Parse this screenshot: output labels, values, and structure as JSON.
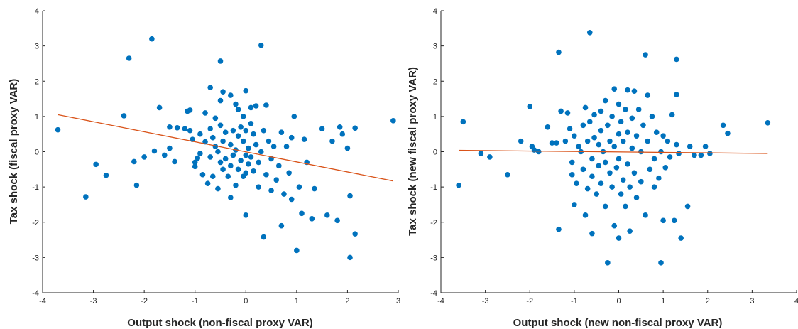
{
  "chart_data": [
    {
      "type": "scatter",
      "xlabel": "Output shock (non-fiscal proxy VAR)",
      "ylabel": "Tax shock (fiscal proxy VAR)",
      "xlim": [
        -4,
        3
      ],
      "ylim": [
        -4,
        4
      ],
      "xticks": [
        -4,
        -3,
        -2,
        -1,
        0,
        1,
        2,
        3
      ],
      "yticks": [
        -4,
        -3,
        -2,
        -1,
        0,
        1,
        2,
        3,
        4
      ],
      "grid": false,
      "colors": {
        "points": "#0072BD",
        "fit": "#D95319"
      },
      "fit_line": {
        "x": [
          -3.7,
          2.9
        ],
        "y": [
          1.05,
          -0.83
        ]
      },
      "series": [
        {
          "points": [
            [
              -3.7,
              0.62
            ],
            [
              -3.15,
              -1.28
            ],
            [
              -2.95,
              -0.36
            ],
            [
              -2.75,
              -0.67
            ],
            [
              -2.4,
              1.02
            ],
            [
              -2.3,
              2.65
            ],
            [
              -2.2,
              -0.28
            ],
            [
              -2.15,
              -0.95
            ],
            [
              -2.0,
              -0.15
            ],
            [
              -1.85,
              3.2
            ],
            [
              -1.8,
              0.02
            ],
            [
              -1.7,
              1.25
            ],
            [
              -1.6,
              -0.1
            ],
            [
              -1.5,
              0.1
            ],
            [
              -1.5,
              0.7
            ],
            [
              -1.4,
              -0.28
            ],
            [
              -1.35,
              0.68
            ],
            [
              -1.2,
              0.65
            ],
            [
              -1.15,
              1.15
            ],
            [
              -1.1,
              1.18
            ],
            [
              -1.1,
              0.6
            ],
            [
              -1.05,
              0.35
            ],
            [
              -1.0,
              -0.3
            ],
            [
              -1.0,
              -0.42
            ],
            [
              -0.95,
              -0.18
            ],
            [
              -0.9,
              0.5
            ],
            [
              -0.9,
              -0.05
            ],
            [
              -0.85,
              -0.65
            ],
            [
              -0.8,
              1.1
            ],
            [
              -0.8,
              0.28
            ],
            [
              -0.75,
              -0.9
            ],
            [
              -0.7,
              1.82
            ],
            [
              -0.7,
              0.65
            ],
            [
              -0.7,
              -0.15
            ],
            [
              -0.65,
              0.4
            ],
            [
              -0.65,
              -0.7
            ],
            [
              -0.6,
              0.95
            ],
            [
              -0.6,
              0.15
            ],
            [
              -0.55,
              -1.05
            ],
            [
              -0.55,
              0.0
            ],
            [
              -0.5,
              2.57
            ],
            [
              -0.5,
              1.45
            ],
            [
              -0.5,
              0.75
            ],
            [
              -0.5,
              -0.3
            ],
            [
              -0.45,
              1.7
            ],
            [
              -0.45,
              -0.5
            ],
            [
              -0.45,
              0.3
            ],
            [
              -0.4,
              0.55
            ],
            [
              -0.4,
              -0.2
            ],
            [
              -0.35,
              -0.7
            ],
            [
              -0.3,
              1.6
            ],
            [
              -0.3,
              0.2
            ],
            [
              -0.3,
              -0.4
            ],
            [
              -0.3,
              -1.3
            ],
            [
              -0.25,
              0.6
            ],
            [
              -0.25,
              -0.1
            ],
            [
              -0.2,
              1.35
            ],
            [
              -0.2,
              0.05
            ],
            [
              -0.2,
              -0.95
            ],
            [
              -0.15,
              1.2
            ],
            [
              -0.15,
              0.45
            ],
            [
              -0.15,
              -0.5
            ],
            [
              -0.1,
              0.7
            ],
            [
              -0.1,
              -0.25
            ],
            [
              -0.05,
              1.0
            ],
            [
              -0.05,
              0.3
            ],
            [
              -0.05,
              -0.7
            ],
            [
              0.0,
              1.73
            ],
            [
              0.0,
              0.6
            ],
            [
              0.0,
              -0.1
            ],
            [
              0.0,
              -0.6
            ],
            [
              0.0,
              -1.8
            ],
            [
              0.05,
              0.1
            ],
            [
              0.05,
              -0.35
            ],
            [
              0.1,
              0.8
            ],
            [
              0.1,
              1.25
            ],
            [
              0.1,
              -0.15
            ],
            [
              0.15,
              0.5
            ],
            [
              0.15,
              -0.55
            ],
            [
              0.2,
              1.3
            ],
            [
              0.2,
              0.2
            ],
            [
              0.25,
              -0.3
            ],
            [
              0.25,
              -1.0
            ],
            [
              0.3,
              3.02
            ],
            [
              0.3,
              0.0
            ],
            [
              0.35,
              0.6
            ],
            [
              0.35,
              -2.42
            ],
            [
              0.4,
              1.32
            ],
            [
              0.4,
              -0.65
            ],
            [
              0.45,
              0.3
            ],
            [
              0.5,
              -0.2
            ],
            [
              0.5,
              -1.1
            ],
            [
              0.55,
              0.15
            ],
            [
              0.6,
              -0.8
            ],
            [
              0.65,
              -0.4
            ],
            [
              0.7,
              0.55
            ],
            [
              0.7,
              -2.1
            ],
            [
              0.75,
              -1.2
            ],
            [
              0.8,
              0.15
            ],
            [
              0.85,
              -0.6
            ],
            [
              0.9,
              0.4
            ],
            [
              0.9,
              -1.35
            ],
            [
              0.95,
              1.0
            ],
            [
              1.0,
              -2.8
            ],
            [
              1.05,
              -1.0
            ],
            [
              1.1,
              -1.75
            ],
            [
              1.15,
              0.35
            ],
            [
              1.2,
              -0.3
            ],
            [
              1.3,
              -1.9
            ],
            [
              1.35,
              -1.05
            ],
            [
              1.5,
              0.65
            ],
            [
              1.6,
              -1.8
            ],
            [
              1.7,
              0.3
            ],
            [
              1.8,
              -1.95
            ],
            [
              1.85,
              0.7
            ],
            [
              1.9,
              0.5
            ],
            [
              2.0,
              0.1
            ],
            [
              2.05,
              -3.0
            ],
            [
              2.05,
              -1.25
            ],
            [
              2.15,
              -2.33
            ],
            [
              2.15,
              0.67
            ],
            [
              2.9,
              0.88
            ]
          ]
        }
      ]
    },
    {
      "type": "scatter",
      "xlabel": "Output shock (new non-fiscal proxy VAR)",
      "ylabel": "Tax shock (new fiscal proxy VAR)",
      "xlim": [
        -4,
        4
      ],
      "ylim": [
        -4,
        4
      ],
      "xticks": [
        -4,
        -3,
        -2,
        -1,
        0,
        1,
        2,
        3,
        4
      ],
      "yticks": [
        -4,
        -3,
        -2,
        -1,
        0,
        1,
        2,
        3,
        4
      ],
      "grid": false,
      "colors": {
        "points": "#0072BD",
        "fit": "#D95319"
      },
      "fit_line": {
        "x": [
          -3.6,
          3.35
        ],
        "y": [
          0.04,
          -0.05
        ]
      },
      "series": [
        {
          "points": [
            [
              -3.6,
              -0.95
            ],
            [
              -3.5,
              0.85
            ],
            [
              -3.1,
              -0.05
            ],
            [
              -2.9,
              -0.15
            ],
            [
              -2.5,
              -0.65
            ],
            [
              -2.2,
              0.3
            ],
            [
              -2.0,
              1.28
            ],
            [
              -1.95,
              0.15
            ],
            [
              -1.9,
              0.05
            ],
            [
              -1.8,
              0.0
            ],
            [
              -1.6,
              0.7
            ],
            [
              -1.5,
              0.25
            ],
            [
              -1.4,
              0.25
            ],
            [
              -1.35,
              2.82
            ],
            [
              -1.35,
              -2.2
            ],
            [
              -1.3,
              1.15
            ],
            [
              -1.2,
              0.3
            ],
            [
              -1.15,
              1.1
            ],
            [
              -1.1,
              0.65
            ],
            [
              -1.05,
              -0.3
            ],
            [
              -1.05,
              -0.65
            ],
            [
              -1.0,
              0.45
            ],
            [
              -1.0,
              -1.5
            ],
            [
              -0.95,
              -0.9
            ],
            [
              -0.9,
              0.15
            ],
            [
              -0.85,
              0.0
            ],
            [
              -0.8,
              0.75
            ],
            [
              -0.8,
              -0.5
            ],
            [
              -0.75,
              1.25
            ],
            [
              -0.75,
              -1.8
            ],
            [
              -0.7,
              0.3
            ],
            [
              -0.7,
              -1.05
            ],
            [
              -0.65,
              3.38
            ],
            [
              -0.65,
              0.85
            ],
            [
              -0.6,
              -0.2
            ],
            [
              -0.6,
              -0.7
            ],
            [
              -0.6,
              -2.32
            ],
            [
              -0.55,
              1.05
            ],
            [
              -0.55,
              0.4
            ],
            [
              -0.5,
              -1.2
            ],
            [
              -0.45,
              0.2
            ],
            [
              -0.45,
              -0.4
            ],
            [
              -0.4,
              1.15
            ],
            [
              -0.4,
              0.6
            ],
            [
              -0.4,
              -0.9
            ],
            [
              -0.35,
              0.0
            ],
            [
              -0.3,
              1.45
            ],
            [
              -0.3,
              -0.3
            ],
            [
              -0.3,
              -1.55
            ],
            [
              -0.25,
              0.75
            ],
            [
              -0.25,
              -3.15
            ],
            [
              -0.2,
              0.3
            ],
            [
              -0.2,
              -0.6
            ],
            [
              -0.15,
              1.0
            ],
            [
              -0.15,
              -1.0
            ],
            [
              -0.1,
              1.78
            ],
            [
              -0.1,
              0.15
            ],
            [
              -0.1,
              -2.1
            ],
            [
              -0.05,
              -0.45
            ],
            [
              0.0,
              1.35
            ],
            [
              0.0,
              0.5
            ],
            [
              0.0,
              -0.2
            ],
            [
              0.0,
              -2.45
            ],
            [
              0.05,
              0.85
            ],
            [
              0.05,
              -1.2
            ],
            [
              0.1,
              0.3
            ],
            [
              0.1,
              -0.8
            ],
            [
              0.15,
              1.2
            ],
            [
              0.15,
              -1.55
            ],
            [
              0.2,
              1.75
            ],
            [
              0.2,
              0.55
            ],
            [
              0.2,
              -0.35
            ],
            [
              0.25,
              -1.0
            ],
            [
              0.25,
              -2.25
            ],
            [
              0.3,
              0.95
            ],
            [
              0.3,
              0.1
            ],
            [
              0.35,
              1.72
            ],
            [
              0.35,
              -0.6
            ],
            [
              0.4,
              0.45
            ],
            [
              0.4,
              -1.3
            ],
            [
              0.45,
              1.2
            ],
            [
              0.5,
              0.0
            ],
            [
              0.5,
              -0.85
            ],
            [
              0.55,
              0.75
            ],
            [
              0.6,
              2.75
            ],
            [
              0.6,
              -1.8
            ],
            [
              0.65,
              1.6
            ],
            [
              0.65,
              0.3
            ],
            [
              0.7,
              -0.5
            ],
            [
              0.75,
              1.0
            ],
            [
              0.8,
              -0.2
            ],
            [
              0.8,
              -1.0
            ],
            [
              0.85,
              0.55
            ],
            [
              0.9,
              -0.75
            ],
            [
              0.95,
              0.0
            ],
            [
              0.95,
              -3.15
            ],
            [
              1.0,
              0.45
            ],
            [
              1.0,
              -1.95
            ],
            [
              1.05,
              -0.45
            ],
            [
              1.1,
              0.3
            ],
            [
              1.15,
              -0.15
            ],
            [
              1.2,
              1.05
            ],
            [
              1.25,
              -1.95
            ],
            [
              1.3,
              2.62
            ],
            [
              1.3,
              1.62
            ],
            [
              1.3,
              0.2
            ],
            [
              1.35,
              -0.05
            ],
            [
              1.4,
              -2.45
            ],
            [
              1.55,
              -1.55
            ],
            [
              1.6,
              0.15
            ],
            [
              1.7,
              -0.1
            ],
            [
              1.85,
              -0.1
            ],
            [
              1.95,
              0.15
            ],
            [
              2.05,
              -0.05
            ],
            [
              2.35,
              0.75
            ],
            [
              2.45,
              0.52
            ],
            [
              3.35,
              0.82
            ]
          ]
        }
      ]
    }
  ]
}
